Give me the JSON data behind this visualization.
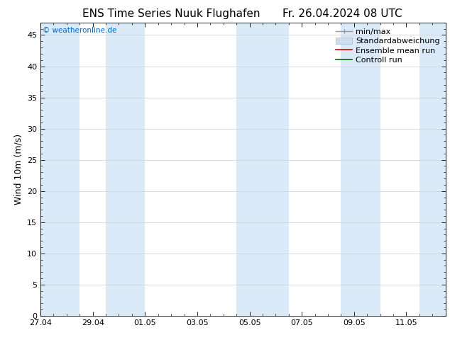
{
  "title": "ENS Time Series Nuuk Flughafen",
  "title_right": "Fr. 26.04.2024 08 UTC",
  "ylabel": "Wind 10m (m/s)",
  "watermark": "© weatheronline.de",
  "watermark_color": "#0066cc",
  "ylim": [
    0,
    47
  ],
  "yticks": [
    0,
    5,
    10,
    15,
    20,
    25,
    30,
    35,
    40,
    45
  ],
  "background_color": "#ffffff",
  "plot_bg_color": "#ffffff",
  "shading_color": "#daeaf8",
  "x_min": 0,
  "x_max": 15.5,
  "x_tick_labels": [
    "27.04",
    "29.04",
    "01.05",
    "03.05",
    "05.05",
    "07.05",
    "09.05",
    "11.05"
  ],
  "x_tick_positions": [
    0,
    2,
    4,
    6,
    8,
    10,
    12,
    14
  ],
  "shaded_bands": [
    [
      0,
      1.5
    ],
    [
      2.5,
      4.0
    ],
    [
      7.5,
      9.5
    ],
    [
      11.5,
      13.0
    ],
    [
      14.5,
      15.5
    ]
  ],
  "title_fontsize": 11,
  "tick_fontsize": 8,
  "ylabel_fontsize": 9,
  "legend_fontsize": 8
}
